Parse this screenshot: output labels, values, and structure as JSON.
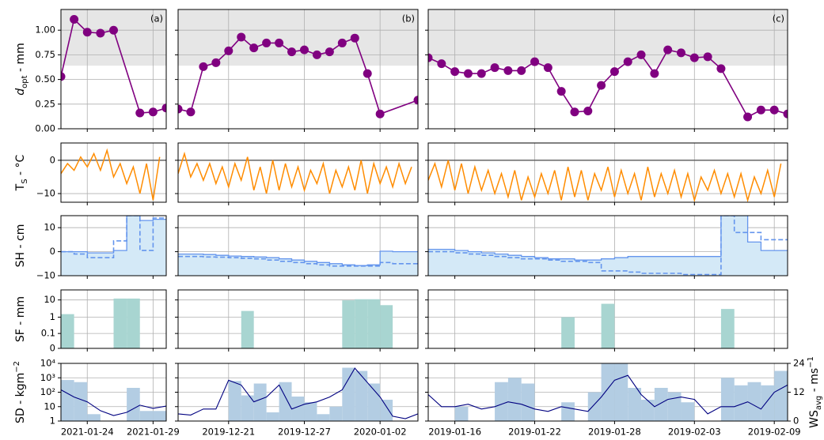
{
  "chart_data": [
    {
      "type": "line",
      "ylabel": [
        {
          "text": "d",
          "style": "italic"
        },
        {
          "text": "opt",
          "style": "sub"
        },
        {
          "text": " - mm"
        }
      ],
      "ylim": [
        0,
        1.21
      ],
      "yticks": [
        {
          "value": 0,
          "label": "0.00"
        },
        {
          "value": 0.25,
          "label": "0.25"
        },
        {
          "value": 0.5,
          "label": "0.50"
        },
        {
          "value": 0.75,
          "label": "0.75"
        },
        {
          "value": 1,
          "label": "1.00"
        }
      ],
      "grid": true,
      "color": "#800080",
      "shade": [
        0.64,
        1.21
      ],
      "shade_color": "#e6e6e6",
      "panels": [
        {
          "title": "(a)",
          "x": [
            "2021-01-22",
            "2021-01-23",
            "2021-01-24",
            "2021-01-25",
            "2021-01-26",
            "2021-01-28",
            "2021-01-29",
            "2021-01-30"
          ],
          "values": [
            0.53,
            1.11,
            0.98,
            0.97,
            1.0,
            0.16,
            0.17,
            0.21
          ]
        },
        {
          "title": "(b)",
          "x": [
            "2019-12-17",
            "2019-12-18",
            "2019-12-19",
            "2019-12-20",
            "2019-12-21",
            "2019-12-22",
            "2019-12-23",
            "2019-12-24",
            "2019-12-25",
            "2019-12-26",
            "2019-12-27",
            "2019-12-28",
            "2019-12-29",
            "2019-12-30",
            "2019-12-31",
            "2020-01-01",
            "2020-01-02",
            "2020-01-05"
          ],
          "values": [
            0.2,
            0.17,
            0.63,
            0.67,
            0.79,
            0.93,
            0.82,
            0.87,
            0.87,
            0.78,
            0.8,
            0.75,
            0.78,
            0.87,
            0.92,
            0.56,
            0.15,
            0.29
          ]
        },
        {
          "title": "(c)",
          "x": [
            "2019-01-14",
            "2019-01-15",
            "2019-01-16",
            "2019-01-17",
            "2019-01-18",
            "2019-01-19",
            "2019-01-20",
            "2019-01-21",
            "2019-01-22",
            "2019-01-23",
            "2019-01-24",
            "2019-01-25",
            "2019-01-26",
            "2019-01-27",
            "2019-01-28",
            "2019-01-29",
            "2019-01-30",
            "2019-01-31",
            "2019-02-01",
            "2019-02-02",
            "2019-02-03",
            "2019-02-04",
            "2019-02-05",
            "2019-02-07",
            "2019-02-08",
            "2019-02-09",
            "2019-02-10"
          ],
          "values": [
            0.72,
            0.66,
            0.58,
            0.56,
            0.56,
            0.62,
            0.59,
            0.59,
            0.68,
            0.62,
            0.38,
            0.17,
            0.18,
            0.44,
            0.58,
            0.68,
            0.75,
            0.56,
            0.8,
            0.77,
            0.72,
            0.73,
            0.61,
            0.12,
            0.19,
            0.19,
            0.15
          ]
        }
      ]
    },
    {
      "type": "diurnal",
      "ylabel": [
        {
          "text": "T"
        },
        {
          "text": "S",
          "style": "sub"
        },
        {
          "text": " - °C"
        }
      ],
      "ylim": [
        -12.6,
        5.2
      ],
      "yticks": [
        {
          "value": -10,
          "label": "−10"
        },
        0
      ],
      "grid": true,
      "color": "#ff8c00",
      "hline": 0,
      "hline_color": "#666666",
      "panels": [
        {
          "x": [
            "2021-01-22",
            "2021-01-23",
            "2021-01-24",
            "2021-01-25",
            "2021-01-26",
            "2021-01-27",
            "2021-01-28",
            "2021-01-29"
          ],
          "low": [
            -4,
            -3,
            -2,
            -3,
            -5,
            -7,
            -10,
            -12
          ],
          "high": [
            -1,
            1,
            2,
            3,
            -1,
            -2,
            -1,
            1
          ]
        },
        {
          "x": [
            "2019-12-17",
            "2019-12-18",
            "2019-12-19",
            "2019-12-20",
            "2019-12-21",
            "2019-12-22",
            "2019-12-23",
            "2019-12-24",
            "2019-12-25",
            "2019-12-26",
            "2019-12-27",
            "2019-12-28",
            "2019-12-29",
            "2019-12-30",
            "2019-12-31",
            "2020-01-01",
            "2020-01-02",
            "2020-01-03",
            "2020-01-04"
          ],
          "low": [
            -4,
            -5,
            -6,
            -7,
            -8,
            -6,
            -9,
            -10,
            -9,
            -8,
            -9,
            -7,
            -10,
            -8,
            -9,
            -10,
            -7,
            -8,
            -7
          ],
          "high": [
            2,
            -1,
            -1,
            -2,
            -1,
            1,
            -2,
            0,
            -1,
            -2,
            -3,
            -1,
            -3,
            -2,
            0,
            -1,
            -2,
            -1,
            -2
          ]
        },
        {
          "x": [
            "2019-01-14",
            "2019-01-15",
            "2019-01-16",
            "2019-01-17",
            "2019-01-18",
            "2019-01-19",
            "2019-01-20",
            "2019-01-21",
            "2019-01-22",
            "2019-01-23",
            "2019-01-24",
            "2019-01-25",
            "2019-01-26",
            "2019-01-27",
            "2019-01-28",
            "2019-01-29",
            "2019-01-30",
            "2019-01-31",
            "2019-02-01",
            "2019-02-02",
            "2019-02-03",
            "2019-02-04",
            "2019-02-05",
            "2019-02-06",
            "2019-02-07",
            "2019-02-08",
            "2019-02-09"
          ],
          "low": [
            -6,
            -8,
            -9,
            -10,
            -9,
            -10,
            -11,
            -12,
            -11,
            -10,
            -12,
            -11,
            -12,
            -9,
            -11,
            -10,
            -12,
            -11,
            -10,
            -11,
            -12,
            -9,
            -10,
            -11,
            -12,
            -10,
            -11
          ],
          "high": [
            -1,
            0,
            -1,
            -2,
            -3,
            -4,
            -3,
            -5,
            -4,
            -3,
            -2,
            -3,
            -4,
            -2,
            -3,
            -4,
            -2,
            -4,
            -3,
            -4,
            -5,
            -3,
            -4,
            -4,
            -5,
            -3,
            -1
          ]
        }
      ]
    },
    {
      "type": "step",
      "ylabel": [
        {
          "text": "SH - cm"
        }
      ],
      "ylim": [
        -10,
        15
      ],
      "yticks": [
        {
          "value": -10,
          "label": "−10"
        },
        0,
        10
      ],
      "grid": true,
      "color": "#6495ed",
      "fill_color": "#d4e9f7",
      "panels": [
        {
          "bins": [
            "2021-01-22",
            "2021-01-23",
            "2021-01-24",
            "2021-01-25",
            "2021-01-26",
            "2021-01-27",
            "2021-01-28",
            "2021-01-29",
            "2021-01-30"
          ],
          "values": [
            0,
            0,
            -0.5,
            -0.5,
            0.5,
            15,
            13,
            13.5
          ],
          "dashed_values": [
            0,
            -1,
            -2.5,
            -2.5,
            4.5,
            15,
            0.5,
            14
          ]
        },
        {
          "bins": [
            "2019-12-17",
            "2019-12-18",
            "2019-12-19",
            "2019-12-20",
            "2019-12-21",
            "2019-12-22",
            "2019-12-23",
            "2019-12-24",
            "2019-12-25",
            "2019-12-26",
            "2019-12-27",
            "2019-12-28",
            "2019-12-29",
            "2019-12-30",
            "2019-12-31",
            "2020-01-01",
            "2020-01-02",
            "2020-01-03",
            "2020-01-04",
            "2020-01-05"
          ],
          "values": [
            -1,
            -1,
            -1.2,
            -1.5,
            -1.8,
            -2,
            -2.2,
            -2.5,
            -3,
            -3.5,
            -4,
            -4.5,
            -5,
            -5.5,
            -5.8,
            -5.5,
            0.2,
            0,
            0
          ],
          "dashed_values": [
            -2,
            -2,
            -2.2,
            -2.3,
            -2.5,
            -2.8,
            -3,
            -3.5,
            -4,
            -4.5,
            -5,
            -5.5,
            -6,
            -6,
            -6,
            -6,
            -4.5,
            -5,
            -5
          ]
        },
        {
          "bins": [
            "2019-01-14",
            "2019-01-15",
            "2019-01-16",
            "2019-01-17",
            "2019-01-18",
            "2019-01-19",
            "2019-01-20",
            "2019-01-21",
            "2019-01-22",
            "2019-01-23",
            "2019-01-24",
            "2019-01-25",
            "2019-01-26",
            "2019-01-27",
            "2019-01-28",
            "2019-01-29",
            "2019-01-30",
            "2019-01-31",
            "2019-02-01",
            "2019-02-02",
            "2019-02-03",
            "2019-02-04",
            "2019-02-05",
            "2019-02-06",
            "2019-02-07",
            "2019-02-08",
            "2019-02-09",
            "2019-02-10"
          ],
          "values": [
            1,
            1,
            0.5,
            0,
            -0.5,
            -1,
            -1.5,
            -2,
            -2.5,
            -3,
            -3,
            -3.5,
            -3.5,
            -3,
            -2.5,
            -2,
            -2,
            -2,
            -2,
            -2,
            -2,
            -2,
            15,
            15,
            4,
            0.5,
            0.5
          ],
          "dashed_values": [
            0,
            0,
            -0.5,
            -1,
            -1.5,
            -2,
            -2.5,
            -3,
            -3,
            -3.5,
            -4,
            -4,
            -4.5,
            -8,
            -8,
            -8.5,
            -9,
            -9,
            -9,
            -9.5,
            -9.5,
            -9.5,
            15,
            8,
            8,
            5,
            5
          ]
        }
      ]
    },
    {
      "type": "histogram",
      "ylabel": [
        {
          "text": "SF - mm"
        }
      ],
      "ylim": [
        0,
        38
      ],
      "yticks": [
        0,
        0.1,
        1,
        10
      ],
      "yscale": "symlog",
      "symlog_constant": 0.016,
      "grid": true,
      "color": "#a8d5d1",
      "panels": [
        {
          "bins": [
            "2021-01-22",
            "2021-01-23",
            "2021-01-24",
            "2021-01-25",
            "2021-01-26",
            "2021-01-27",
            "2021-01-28",
            "2021-01-29",
            "2021-01-30"
          ],
          "values": [
            1.5,
            0,
            0,
            0,
            12,
            12,
            0,
            0
          ]
        },
        {
          "bins": [
            "2019-12-17",
            "2019-12-18",
            "2019-12-19",
            "2019-12-20",
            "2019-12-21",
            "2019-12-22",
            "2019-12-23",
            "2019-12-24",
            "2019-12-25",
            "2019-12-26",
            "2019-12-27",
            "2019-12-28",
            "2019-12-29",
            "2019-12-30",
            "2019-12-31",
            "2020-01-01",
            "2020-01-02",
            "2020-01-03",
            "2020-01-04",
            "2020-01-05"
          ],
          "values": [
            0,
            0,
            0,
            0,
            0,
            2.3,
            0,
            0,
            0,
            0,
            0,
            0,
            0,
            9.5,
            11,
            11,
            5,
            0,
            0
          ]
        },
        {
          "bins": [
            "2019-01-14",
            "2019-01-15",
            "2019-01-16",
            "2019-01-17",
            "2019-01-18",
            "2019-01-19",
            "2019-01-20",
            "2019-01-21",
            "2019-01-22",
            "2019-01-23",
            "2019-01-24",
            "2019-01-25",
            "2019-01-26",
            "2019-01-27",
            "2019-01-28",
            "2019-01-29",
            "2019-01-30",
            "2019-01-31",
            "2019-02-01",
            "2019-02-02",
            "2019-02-03",
            "2019-02-04",
            "2019-02-05",
            "2019-02-06",
            "2019-02-07",
            "2019-02-08",
            "2019-02-09",
            "2019-02-10"
          ],
          "values": [
            0,
            0,
            0,
            0,
            0,
            0,
            0,
            0,
            0,
            0,
            1,
            0,
            0,
            6,
            0,
            0,
            0,
            0,
            0,
            0,
            0,
            0,
            3,
            0,
            0,
            0,
            0
          ]
        }
      ]
    },
    {
      "type": "combo",
      "ylabel": [
        {
          "text": "SD - kgm"
        },
        {
          "text": "−2",
          "style": "sup"
        }
      ],
      "y2label": [
        {
          "text": "WS"
        },
        {
          "text": "avg",
          "style": "sub"
        },
        {
          "text": " - ms"
        },
        {
          "text": "−1",
          "style": "sup"
        }
      ],
      "ylim": [
        1,
        10000
      ],
      "yticks": [
        1,
        10,
        {
          "value": 100,
          "label": "10²"
        },
        {
          "value": 1000,
          "label": "10³"
        },
        {
          "value": 10000,
          "label": "10⁴"
        }
      ],
      "yscale": "log",
      "y2lim": [
        0,
        24
      ],
      "y2ticks": [
        0,
        12,
        24
      ],
      "grid": true,
      "color": "#b3cde3",
      "line_color": "#000080",
      "panels": [
        {
          "xlim": [
            "2021-01-22",
            "2021-01-30"
          ],
          "xticks": [
            "2021-01-24",
            "2021-01-29"
          ],
          "bins": [
            "2021-01-22",
            "2021-01-23",
            "2021-01-24",
            "2021-01-25",
            "2021-01-26",
            "2021-01-27",
            "2021-01-28",
            "2021-01-29",
            "2021-01-30"
          ],
          "values": [
            700,
            500,
            3,
            null,
            null,
            200,
            5,
            5
          ],
          "ws": [
            13,
            10,
            8,
            4.3,
            2.3,
            3.6,
            6.6,
            5.3,
            6.2
          ]
        },
        {
          "xlim": [
            "2019-12-17",
            "2020-01-05"
          ],
          "xticks": [
            "2019-12-21",
            "2019-12-27",
            "2020-01-02"
          ],
          "bins": [
            "2019-12-17",
            "2019-12-18",
            "2019-12-19",
            "2019-12-20",
            "2019-12-21",
            "2019-12-22",
            "2019-12-23",
            "2019-12-24",
            "2019-12-25",
            "2019-12-26",
            "2019-12-27",
            "2019-12-28",
            "2019-12-29",
            "2019-12-30",
            "2019-12-31",
            "2020-01-01",
            "2020-01-02",
            "2020-01-03",
            "2020-01-04",
            "2020-01-05"
          ],
          "values": [
            null,
            null,
            null,
            null,
            600,
            60,
            400,
            4,
            500,
            50,
            20,
            3,
            10,
            5000,
            3000,
            400,
            30,
            null,
            null
          ],
          "ws": [
            3,
            2.5,
            5,
            5,
            17,
            15,
            8,
            10,
            15,
            5,
            7,
            8,
            10,
            13,
            22,
            16,
            10,
            2,
            1,
            3
          ]
        },
        {
          "xlim": [
            "2019-01-14",
            "2019-02-10"
          ],
          "xticks": [
            "2019-01-16",
            "2019-01-22",
            "2019-01-28",
            "2019-02-03",
            "2019-02-09"
          ],
          "bins": [
            "2019-01-14",
            "2019-01-15",
            "2019-01-16",
            "2019-01-17",
            "2019-01-18",
            "2019-01-19",
            "2019-01-20",
            "2019-01-21",
            "2019-01-22",
            "2019-01-23",
            "2019-01-24",
            "2019-01-25",
            "2019-01-26",
            "2019-01-27",
            "2019-01-28",
            "2019-01-29",
            "2019-01-30",
            "2019-01-31",
            "2019-02-01",
            "2019-02-02",
            "2019-02-03",
            "2019-02-04",
            "2019-02-05",
            "2019-02-06",
            "2019-02-07",
            "2019-02-08",
            "2019-02-09",
            "2019-02-10"
          ],
          "values": [
            null,
            null,
            10,
            null,
            null,
            500,
            1000,
            400,
            null,
            null,
            20,
            null,
            100,
            10000,
            10000,
            200,
            30,
            200,
            100,
            20,
            null,
            null,
            1000,
            300,
            500,
            300,
            3000
          ],
          "ws": [
            11,
            6,
            6,
            7,
            5,
            6,
            8,
            7,
            5,
            4,
            6,
            5,
            4,
            10,
            17,
            19,
            11,
            6,
            9,
            10,
            9,
            3,
            6,
            6,
            8,
            5,
            12,
            15
          ]
        }
      ]
    }
  ]
}
